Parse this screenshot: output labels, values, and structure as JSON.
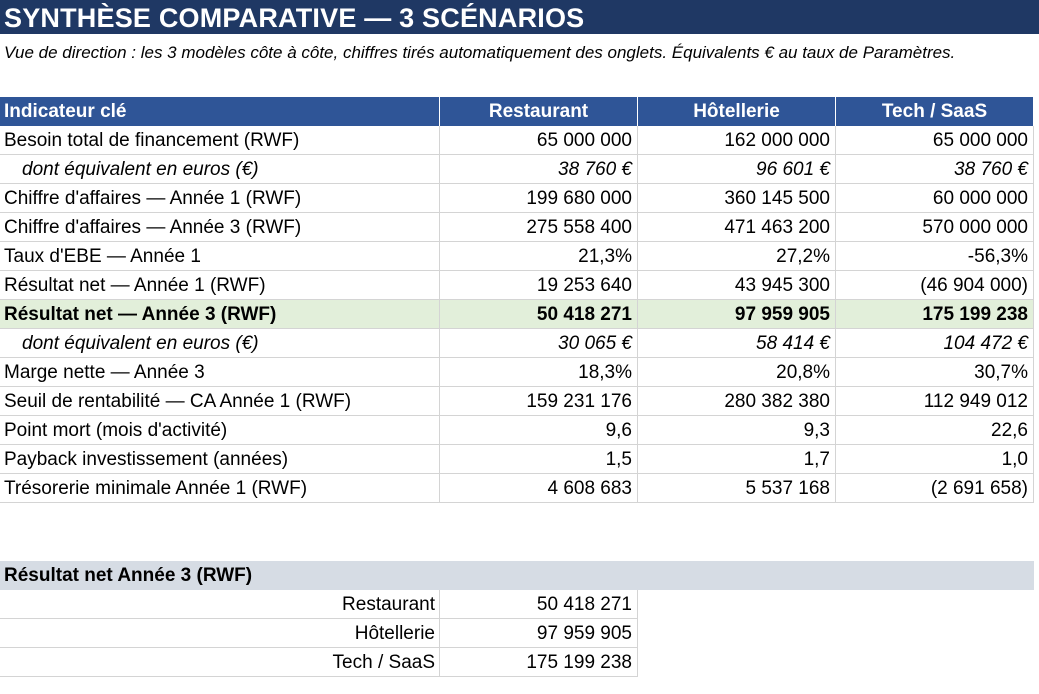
{
  "title": "SYNTHÈSE COMPARATIVE — 3 SCÉNARIOS",
  "subtitle": "Vue de direction : les 3 modèles côte à côte, chiffres tirés automatiquement des onglets. Équivalents € au taux de Paramètres.",
  "table": {
    "headers": [
      "Indicateur clé",
      "Restaurant",
      "Hôtellerie",
      "Tech / SaaS"
    ],
    "rows": [
      {
        "label": "Besoin total de financement (RWF)",
        "values": [
          "65 000 000",
          "162 000 000",
          "65 000 000"
        ],
        "style": "normal"
      },
      {
        "label": "dont équivalent en euros (€)",
        "values": [
          "38 760 €",
          "96 601 €",
          "38 760 €"
        ],
        "style": "italic"
      },
      {
        "label": "Chiffre d'affaires — Année 1 (RWF)",
        "values": [
          "199 680 000",
          "360 145 500",
          "60 000 000"
        ],
        "style": "normal"
      },
      {
        "label": "Chiffre d'affaires — Année 3 (RWF)",
        "values": [
          "275 558 400",
          "471 463 200",
          "570 000 000"
        ],
        "style": "normal"
      },
      {
        "label": "Taux d'EBE — Année 1",
        "values": [
          "21,3%",
          "27,2%",
          "-56,3%"
        ],
        "style": "normal"
      },
      {
        "label": "Résultat net — Année 1 (RWF)",
        "values": [
          "19 253 640",
          "43 945 300",
          "(46 904 000)"
        ],
        "style": "normal"
      },
      {
        "label": "Résultat net — Année 3 (RWF)",
        "values": [
          "50 418 271",
          "97 959 905",
          "175 199 238"
        ],
        "style": "highlight"
      },
      {
        "label": "dont équivalent en euros (€)",
        "values": [
          "30 065 €",
          "58 414 €",
          "104 472 €"
        ],
        "style": "italic"
      },
      {
        "label": "Marge nette — Année 3",
        "values": [
          "18,3%",
          "20,8%",
          "30,7%"
        ],
        "style": "normal"
      },
      {
        "label": "Seuil de rentabilité — CA Année 1 (RWF)",
        "values": [
          "159 231 176",
          "280 382 380",
          "112 949 012"
        ],
        "style": "normal"
      },
      {
        "label": "Point mort (mois d'activité)",
        "values": [
          "9,6",
          "9,3",
          "22,6"
        ],
        "style": "normal"
      },
      {
        "label": "Payback investissement (années)",
        "values": [
          "1,5",
          "1,7",
          "1,0"
        ],
        "style": "normal"
      },
      {
        "label": "Trésorerie minimale Année 1 (RWF)",
        "values": [
          "4 608 683",
          "5 537 168",
          "(2 691 658)"
        ],
        "style": "normal"
      }
    ]
  },
  "summary": {
    "header": "Résultat net Année 3 (RWF)",
    "rows": [
      {
        "label": "Restaurant",
        "value": "50 418 271"
      },
      {
        "label": "Hôtellerie",
        "value": "97 959 905"
      },
      {
        "label": "Tech / SaaS",
        "value": "175 199 238"
      }
    ]
  },
  "colors": {
    "title_bg": "#1f3864",
    "header_bg": "#2f5597",
    "highlight_bg": "#e2efda",
    "section_bg": "#d6dce4"
  }
}
